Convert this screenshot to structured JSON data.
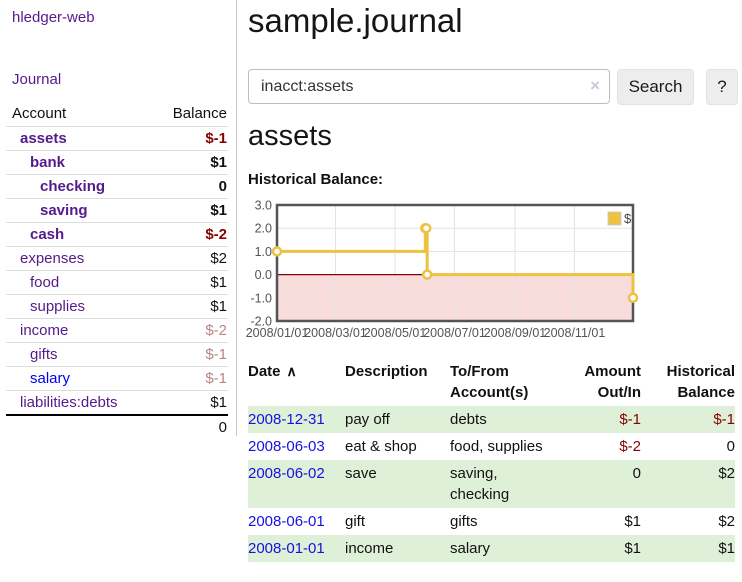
{
  "app": {
    "title": "hledger-web"
  },
  "nav": {
    "journal": "Journal"
  },
  "sidebar": {
    "headers": {
      "account": "Account",
      "balance": "Balance"
    },
    "accounts": [
      {
        "name": "assets",
        "balance": "$-1",
        "level": 1,
        "bold": true,
        "tone": "neg-strong",
        "link": "purple"
      },
      {
        "name": "bank",
        "balance": "$1",
        "level": 2,
        "bold": true,
        "tone": "pos",
        "link": "purple"
      },
      {
        "name": "checking",
        "balance": "0",
        "level": 3,
        "bold": true,
        "tone": "pos",
        "link": "purple"
      },
      {
        "name": "saving",
        "balance": "$1",
        "level": 3,
        "bold": true,
        "tone": "pos",
        "link": "purple"
      },
      {
        "name": "cash",
        "balance": "$-2",
        "level": 2,
        "bold": true,
        "tone": "neg-strong",
        "link": "purple"
      },
      {
        "name": "expenses",
        "balance": "$2",
        "level": 1,
        "bold": false,
        "tone": "pos",
        "link": "purple"
      },
      {
        "name": "food",
        "balance": "$1",
        "level": 2,
        "bold": false,
        "tone": "pos",
        "link": "purple"
      },
      {
        "name": "supplies",
        "balance": "$1",
        "level": 2,
        "bold": false,
        "tone": "pos",
        "link": "purple"
      },
      {
        "name": "income",
        "balance": "$-2",
        "level": 1,
        "bold": false,
        "tone": "neg-soft",
        "link": "purple"
      },
      {
        "name": "gifts",
        "balance": "$-1",
        "level": 2,
        "bold": false,
        "tone": "neg-soft",
        "link": "purple"
      },
      {
        "name": "salary",
        "balance": "$-1",
        "level": 2,
        "bold": false,
        "tone": "neg-soft",
        "link": "blue"
      },
      {
        "name": "liabilities:debts",
        "balance": "$1",
        "level": 1,
        "bold": false,
        "tone": "pos",
        "link": "purple"
      }
    ],
    "total": "0"
  },
  "main": {
    "title": "sample.journal",
    "search": {
      "value": "inacct:assets",
      "clear_icon": "×",
      "search_button": "Search",
      "help_button": "?"
    },
    "account_heading": "assets"
  },
  "chart_data": {
    "type": "line",
    "title": "Historical Balance:",
    "legend": {
      "label": "$",
      "position": "top-right"
    },
    "x_start": "2008-01-01",
    "x_end": "2008-12-31",
    "x_ticks": [
      "2008/01/01",
      "2008/03/01",
      "2008/05/01",
      "2008/07/01",
      "2008/09/01",
      "2008/11/01"
    ],
    "y_ticks": [
      3.0,
      2.0,
      1.0,
      0.0,
      -1.0,
      -2.0
    ],
    "ylim": [
      -2,
      3
    ],
    "grid": true,
    "series": [
      {
        "name": "$",
        "color": "#edc240",
        "step": true,
        "points": [
          [
            "2008-01-01",
            1
          ],
          [
            "2008-06-01",
            2
          ],
          [
            "2008-06-02",
            2
          ],
          [
            "2008-06-03",
            0
          ],
          [
            "2008-12-31",
            -1
          ]
        ]
      }
    ],
    "negative_region_color": "#f8dcdc",
    "zero_line_color": "#8b0000",
    "border_color": "#545454",
    "grid_color": "#e3e3e3",
    "tick_label_color": "#545454"
  },
  "register": {
    "headers": {
      "date": "Date",
      "sort_icon": "∧",
      "description": "Description",
      "tofrom_line1": "To/From",
      "tofrom_line2": "Account(s)",
      "amount_line1": "Amount",
      "amount_line2": "Out/In",
      "hist_line1": "Historical",
      "hist_line2": "Balance"
    },
    "rows": [
      {
        "date": "2008-12-31",
        "description": "pay off",
        "accounts": "debts",
        "amount": "$-1",
        "balance": "$-1",
        "amount_negative": true,
        "balance_negative": true
      },
      {
        "date": "2008-06-03",
        "description": "eat & shop",
        "accounts": "food, supplies",
        "amount": "$-2",
        "balance": "0",
        "amount_negative": true,
        "balance_negative": false
      },
      {
        "date": "2008-06-02",
        "description": "save",
        "accounts": "saving, checking",
        "amount": "0",
        "balance": "$2",
        "amount_negative": false,
        "balance_negative": false
      },
      {
        "date": "2008-06-01",
        "description": "gift",
        "accounts": "gifts",
        "amount": "$1",
        "balance": "$2",
        "amount_negative": false,
        "balance_negative": false
      },
      {
        "date": "2008-01-01",
        "description": "income",
        "accounts": "salary",
        "amount": "$1",
        "balance": "$1",
        "amount_negative": false,
        "balance_negative": false
      }
    ]
  },
  "colors": {
    "link_purple": "#551a8b",
    "link_blue": "#0000ee",
    "negative_strong": "#880000",
    "negative_soft": "#bb8585",
    "row_stripe_green": "#dff0d8",
    "chart_line_gold": "#edc240",
    "chart_negative_pink": "#f8dcdc",
    "chart_zero_line": "#8b0000"
  }
}
